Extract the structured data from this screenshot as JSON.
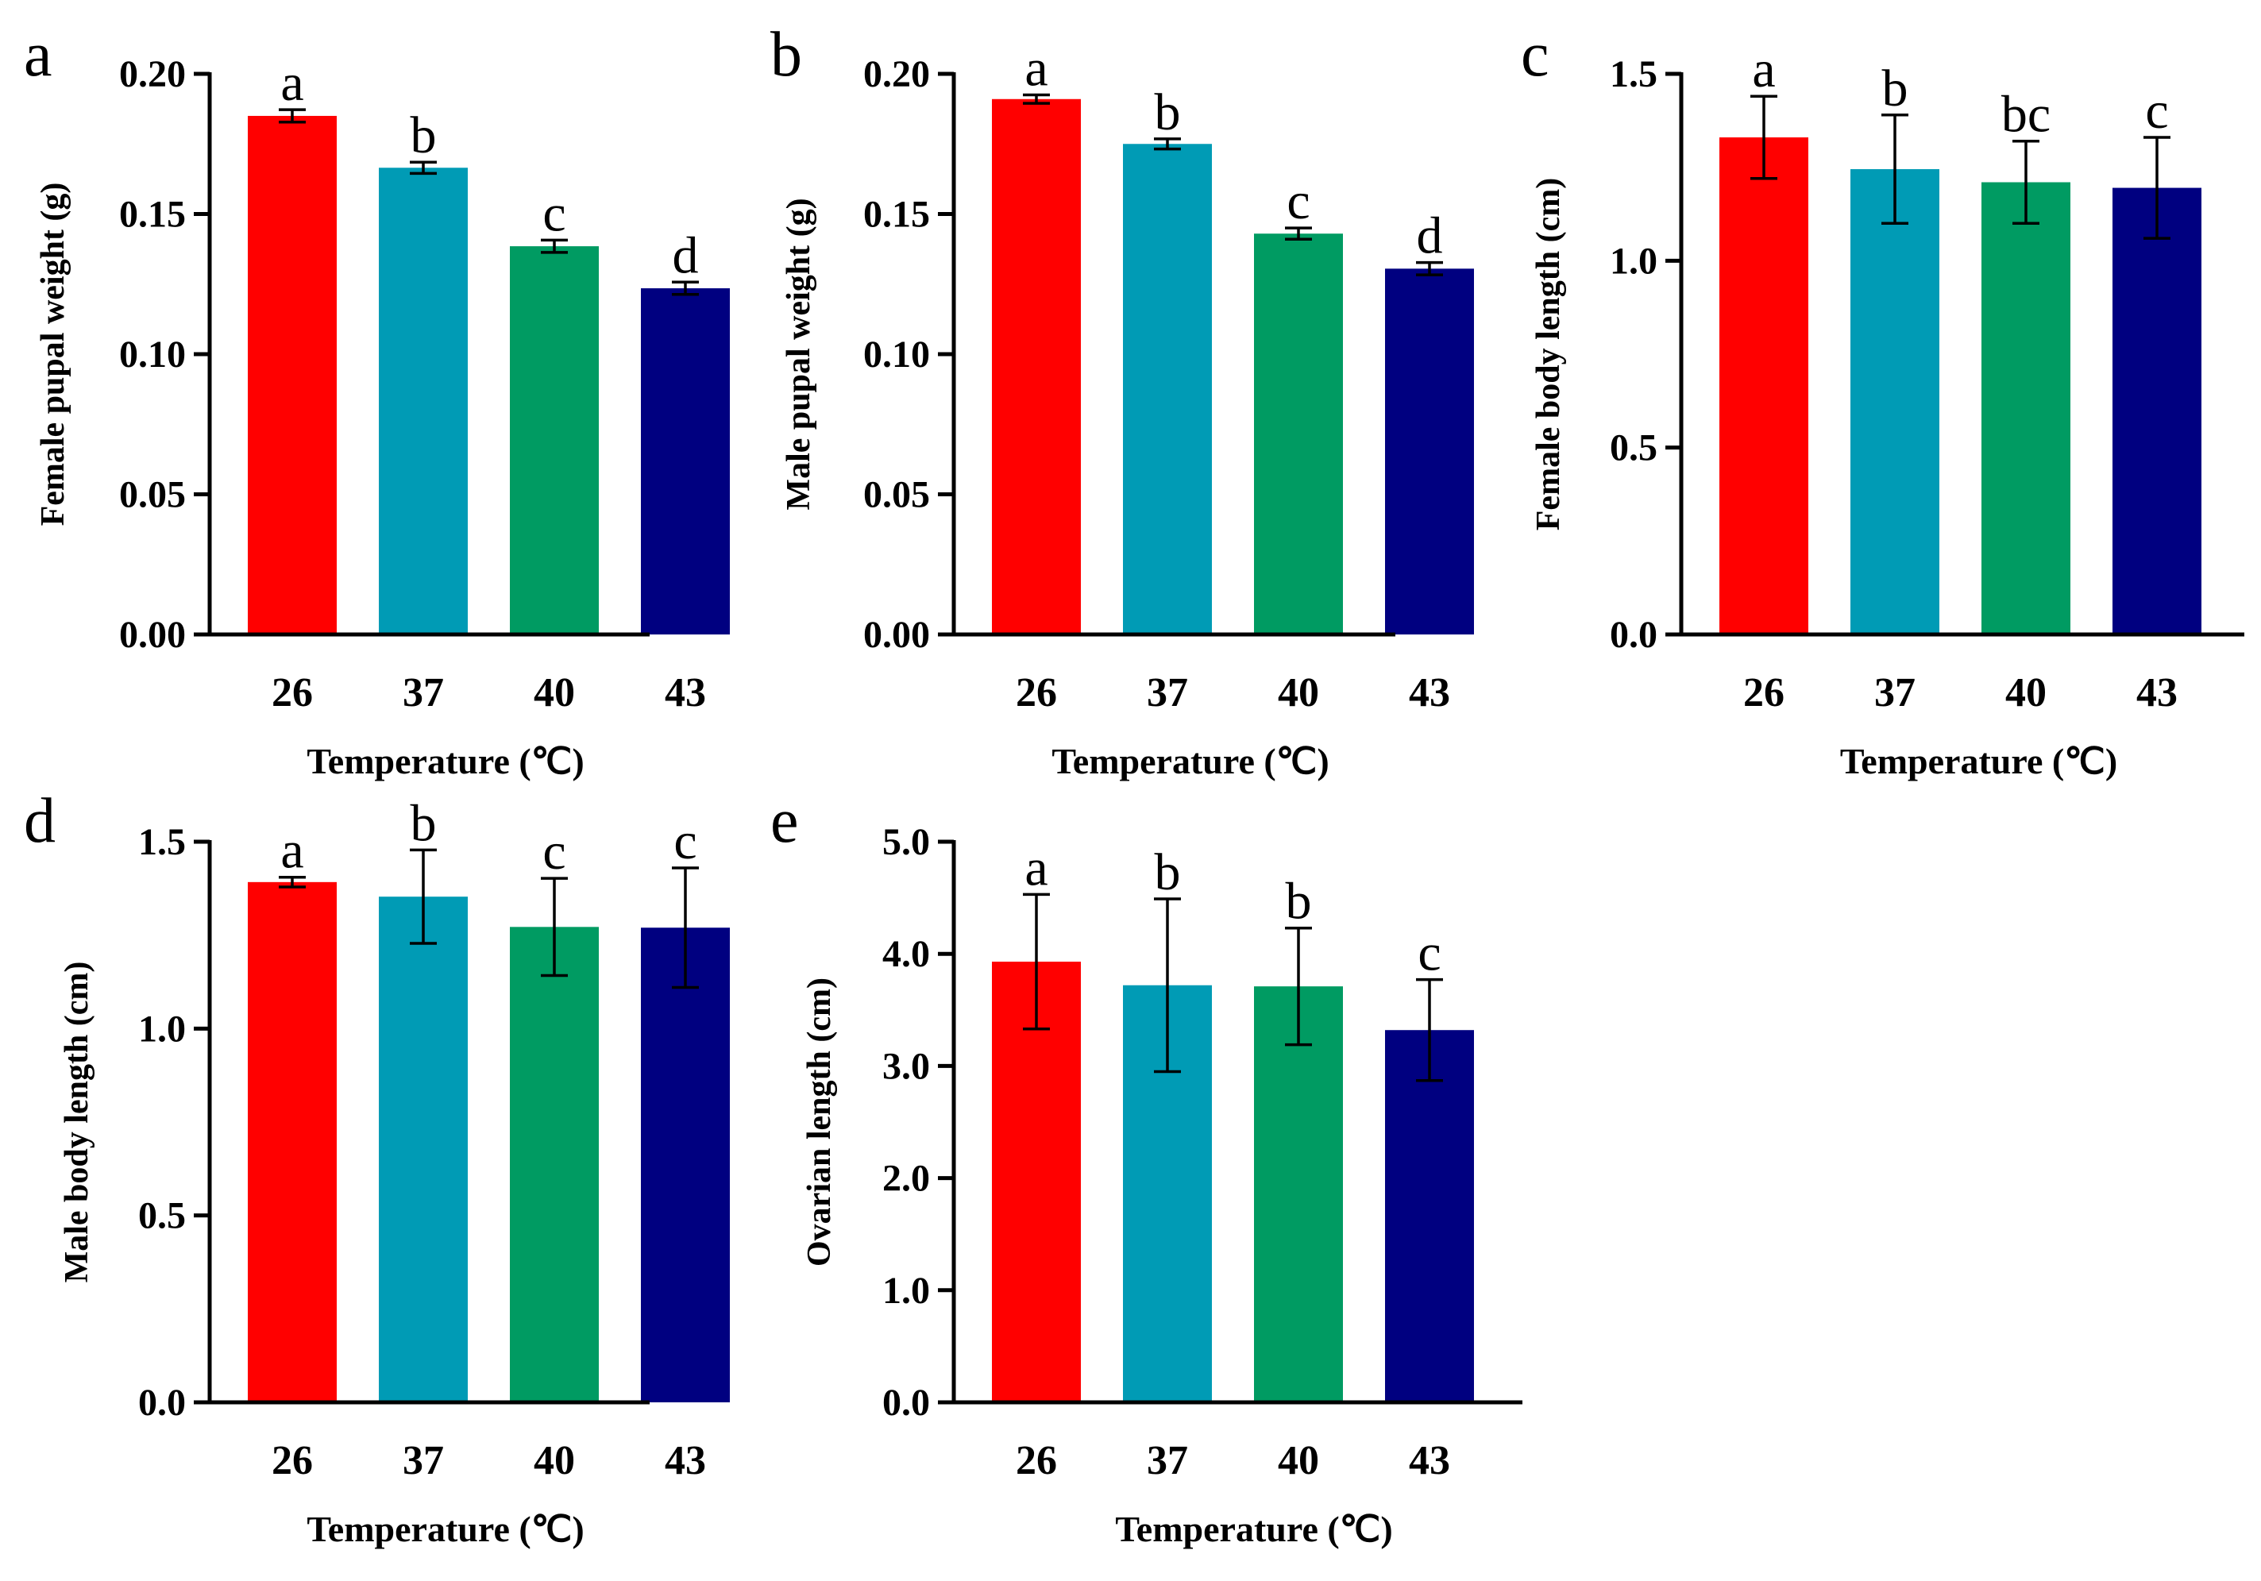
{
  "colors": {
    "axis": "#000000",
    "bars": [
      "#ff0000",
      "#009bb5",
      "#009b62",
      "#000080"
    ]
  },
  "chart_data": [
    {
      "type": "bar",
      "panel": "a",
      "xlabel": "Temperature (℃)",
      "ylabel": "Female pupal weight (g)",
      "categories": [
        "26",
        "37",
        "40",
        "43"
      ],
      "values": [
        0.185,
        0.1665,
        0.1385,
        0.1235
      ],
      "errors": [
        0.0022,
        0.002,
        0.0022,
        0.0022
      ],
      "significance": [
        "a",
        "b",
        "c",
        "d"
      ],
      "ylim": [
        0,
        0.2
      ],
      "yticks": [
        "0.00",
        "0.05",
        "0.10",
        "0.15",
        "0.20"
      ]
    },
    {
      "type": "bar",
      "panel": "b",
      "xlabel": "Temperature (℃)",
      "ylabel": "Male pupal weight (g)",
      "categories": [
        "26",
        "37",
        "40",
        "43"
      ],
      "values": [
        0.191,
        0.175,
        0.143,
        0.1305
      ],
      "errors": [
        0.0015,
        0.0018,
        0.002,
        0.0022
      ],
      "significance": [
        "a",
        "b",
        "c",
        "d"
      ],
      "ylim": [
        0,
        0.2
      ],
      "yticks": [
        "0.00",
        "0.05",
        "0.10",
        "0.15",
        "0.20"
      ]
    },
    {
      "type": "bar",
      "panel": "c",
      "xlabel": "Temperature (℃)",
      "ylabel": "Female body length (cm)",
      "categories": [
        "26",
        "37",
        "40",
        "43"
      ],
      "values": [
        1.33,
        1.245,
        1.21,
        1.195
      ],
      "errors": [
        0.11,
        0.145,
        0.11,
        0.135
      ],
      "significance": [
        "a",
        "b",
        "bc",
        "c"
      ],
      "ylim": [
        0,
        1.5
      ],
      "yticks": [
        "0.0",
        "0.5",
        "1.0",
        "1.5"
      ]
    },
    {
      "type": "bar",
      "panel": "d",
      "xlabel": "Temperature (℃)",
      "ylabel": "Male body length (cm)",
      "categories": [
        "26",
        "37",
        "40",
        "43"
      ],
      "values": [
        1.392,
        1.353,
        1.272,
        1.27
      ],
      "errors": [
        0.013,
        0.125,
        0.13,
        0.16
      ],
      "significance": [
        "a",
        "b",
        "c",
        "c"
      ],
      "ylim": [
        0,
        1.5
      ],
      "yticks": [
        "0.0",
        "0.5",
        "1.0",
        "1.5"
      ]
    },
    {
      "type": "bar",
      "panel": "e",
      "xlabel": "Temperature (℃)",
      "ylabel": "Ovarian length (cm)",
      "categories": [
        "26",
        "37",
        "40",
        "43"
      ],
      "values": [
        3.93,
        3.72,
        3.71,
        3.32
      ],
      "errors": [
        0.6,
        0.77,
        0.52,
        0.45
      ],
      "significance": [
        "a",
        "b",
        "b",
        "c"
      ],
      "ylim": [
        0,
        5.0
      ],
      "yticks": [
        "0.0",
        "1.0",
        "2.0",
        "3.0",
        "4.0",
        "5.0"
      ]
    }
  ]
}
